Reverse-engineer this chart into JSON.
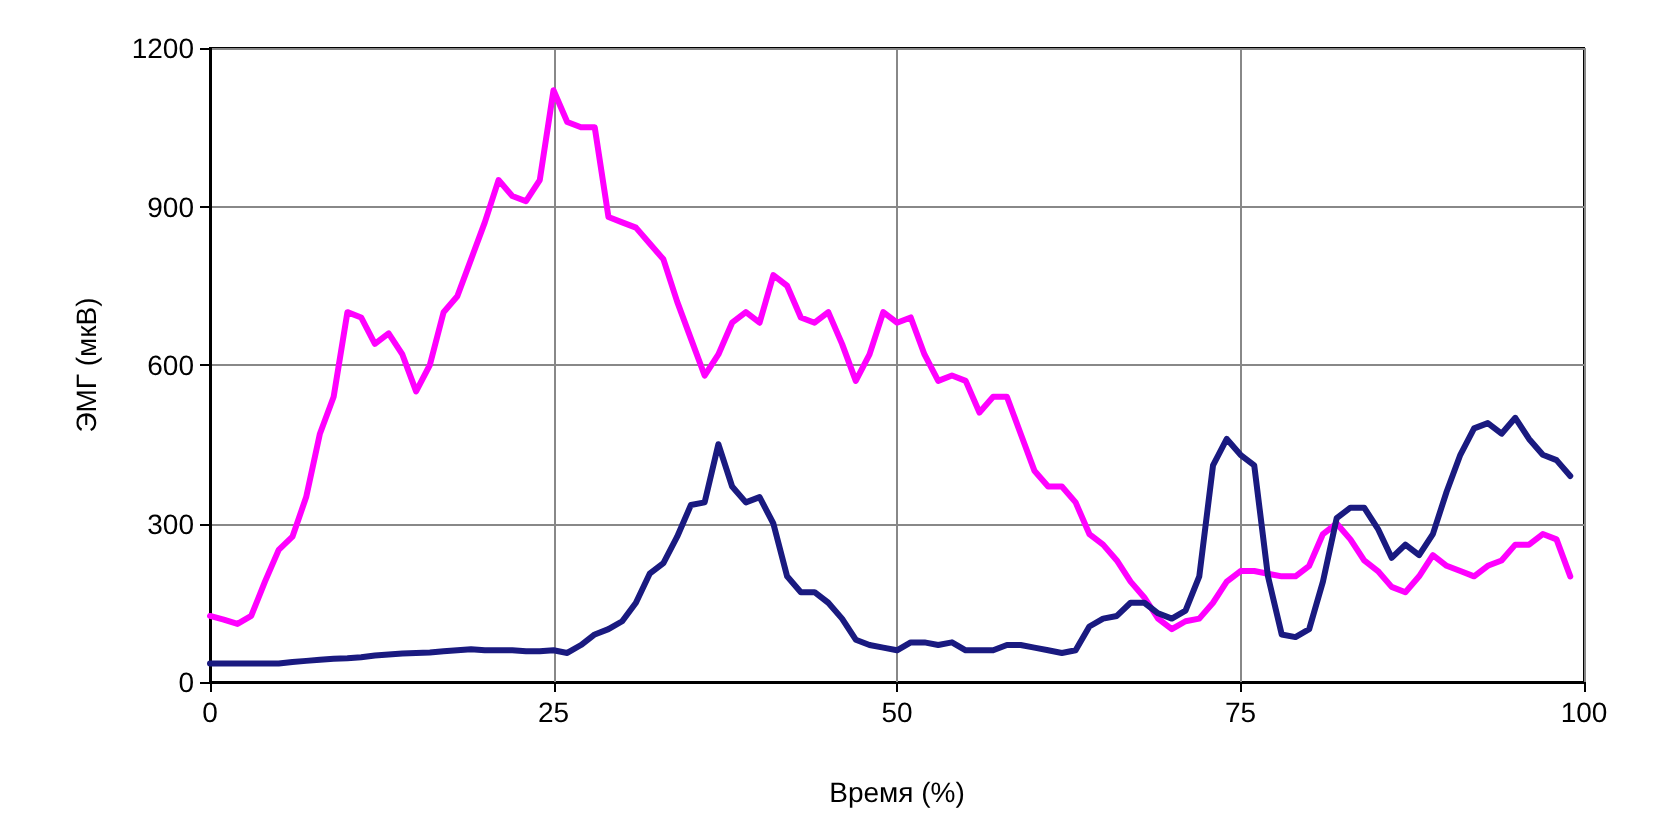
{
  "chart_data": {
    "type": "line",
    "xlabel": "Время (%)",
    "ylabel": "ЭМГ (мкВ)",
    "xlim": [
      0,
      100
    ],
    "xticks": [
      0,
      25,
      50,
      75,
      100
    ],
    "ylim": [
      0,
      1200
    ],
    "yticks": [
      0,
      300,
      600,
      900,
      1200
    ],
    "grid": true,
    "marker": "none",
    "line_style": "solid",
    "x": [
      0,
      1,
      2,
      3,
      4,
      5,
      6,
      7,
      8,
      9,
      10,
      11,
      12,
      13,
      14,
      15,
      16,
      17,
      18,
      19,
      20,
      21,
      22,
      23,
      24,
      25,
      26,
      27,
      28,
      29,
      30,
      31,
      32,
      33,
      34,
      35,
      36,
      37,
      38,
      39,
      40,
      41,
      42,
      43,
      44,
      45,
      46,
      47,
      48,
      49,
      50,
      51,
      52,
      53,
      54,
      55,
      56,
      57,
      58,
      59,
      60,
      61,
      62,
      63,
      64,
      65,
      66,
      67,
      68,
      69,
      70,
      71,
      72,
      73,
      74,
      75,
      76,
      77,
      78,
      79,
      80,
      81,
      82,
      83,
      84,
      85,
      86,
      87,
      88,
      89,
      90,
      91,
      92,
      93,
      94,
      95,
      96,
      97,
      98,
      99
    ],
    "series": [
      {
        "color": "#ff00ff",
        "values": [
          125,
          118,
          110,
          125,
          190,
          250,
          275,
          350,
          470,
          540,
          700,
          690,
          640,
          660,
          620,
          550,
          600,
          700,
          730,
          800,
          870,
          950,
          920,
          910,
          950,
          1120,
          1060,
          1050,
          1050,
          880,
          870,
          860,
          830,
          800,
          720,
          650,
          580,
          620,
          680,
          700,
          680,
          770,
          750,
          690,
          680,
          700,
          640,
          570,
          620,
          700,
          680,
          690,
          620,
          570,
          580,
          570,
          510,
          540,
          540,
          470,
          400,
          370,
          370,
          340,
          280,
          260,
          230,
          190,
          160,
          120,
          100,
          115,
          120,
          150,
          190,
          210,
          210,
          205,
          200,
          200,
          220,
          280,
          300,
          270,
          230,
          210,
          180,
          170,
          200,
          240,
          220,
          210,
          200,
          220,
          230,
          260,
          260,
          280,
          270,
          200
        ]
      },
      {
        "color": "#1a1a80",
        "values": [
          35,
          35,
          35,
          35,
          35,
          35,
          38,
          40,
          42,
          44,
          45,
          47,
          50,
          52,
          54,
          55,
          56,
          58,
          60,
          62,
          60,
          60,
          60,
          58,
          58,
          60,
          55,
          70,
          90,
          100,
          115,
          150,
          205,
          225,
          275,
          335,
          340,
          450,
          370,
          340,
          350,
          300,
          200,
          170,
          170,
          150,
          120,
          80,
          70,
          65,
          60,
          75,
          75,
          70,
          75,
          60,
          60,
          60,
          70,
          70,
          65,
          60,
          55,
          60,
          105,
          120,
          125,
          150,
          150,
          130,
          120,
          135,
          200,
          410,
          460,
          430,
          410,
          200,
          90,
          85,
          100,
          190,
          310,
          330,
          330,
          290,
          235,
          260,
          240,
          280,
          360,
          430,
          480,
          490,
          470,
          500,
          460,
          430,
          420,
          390
        ]
      }
    ]
  }
}
